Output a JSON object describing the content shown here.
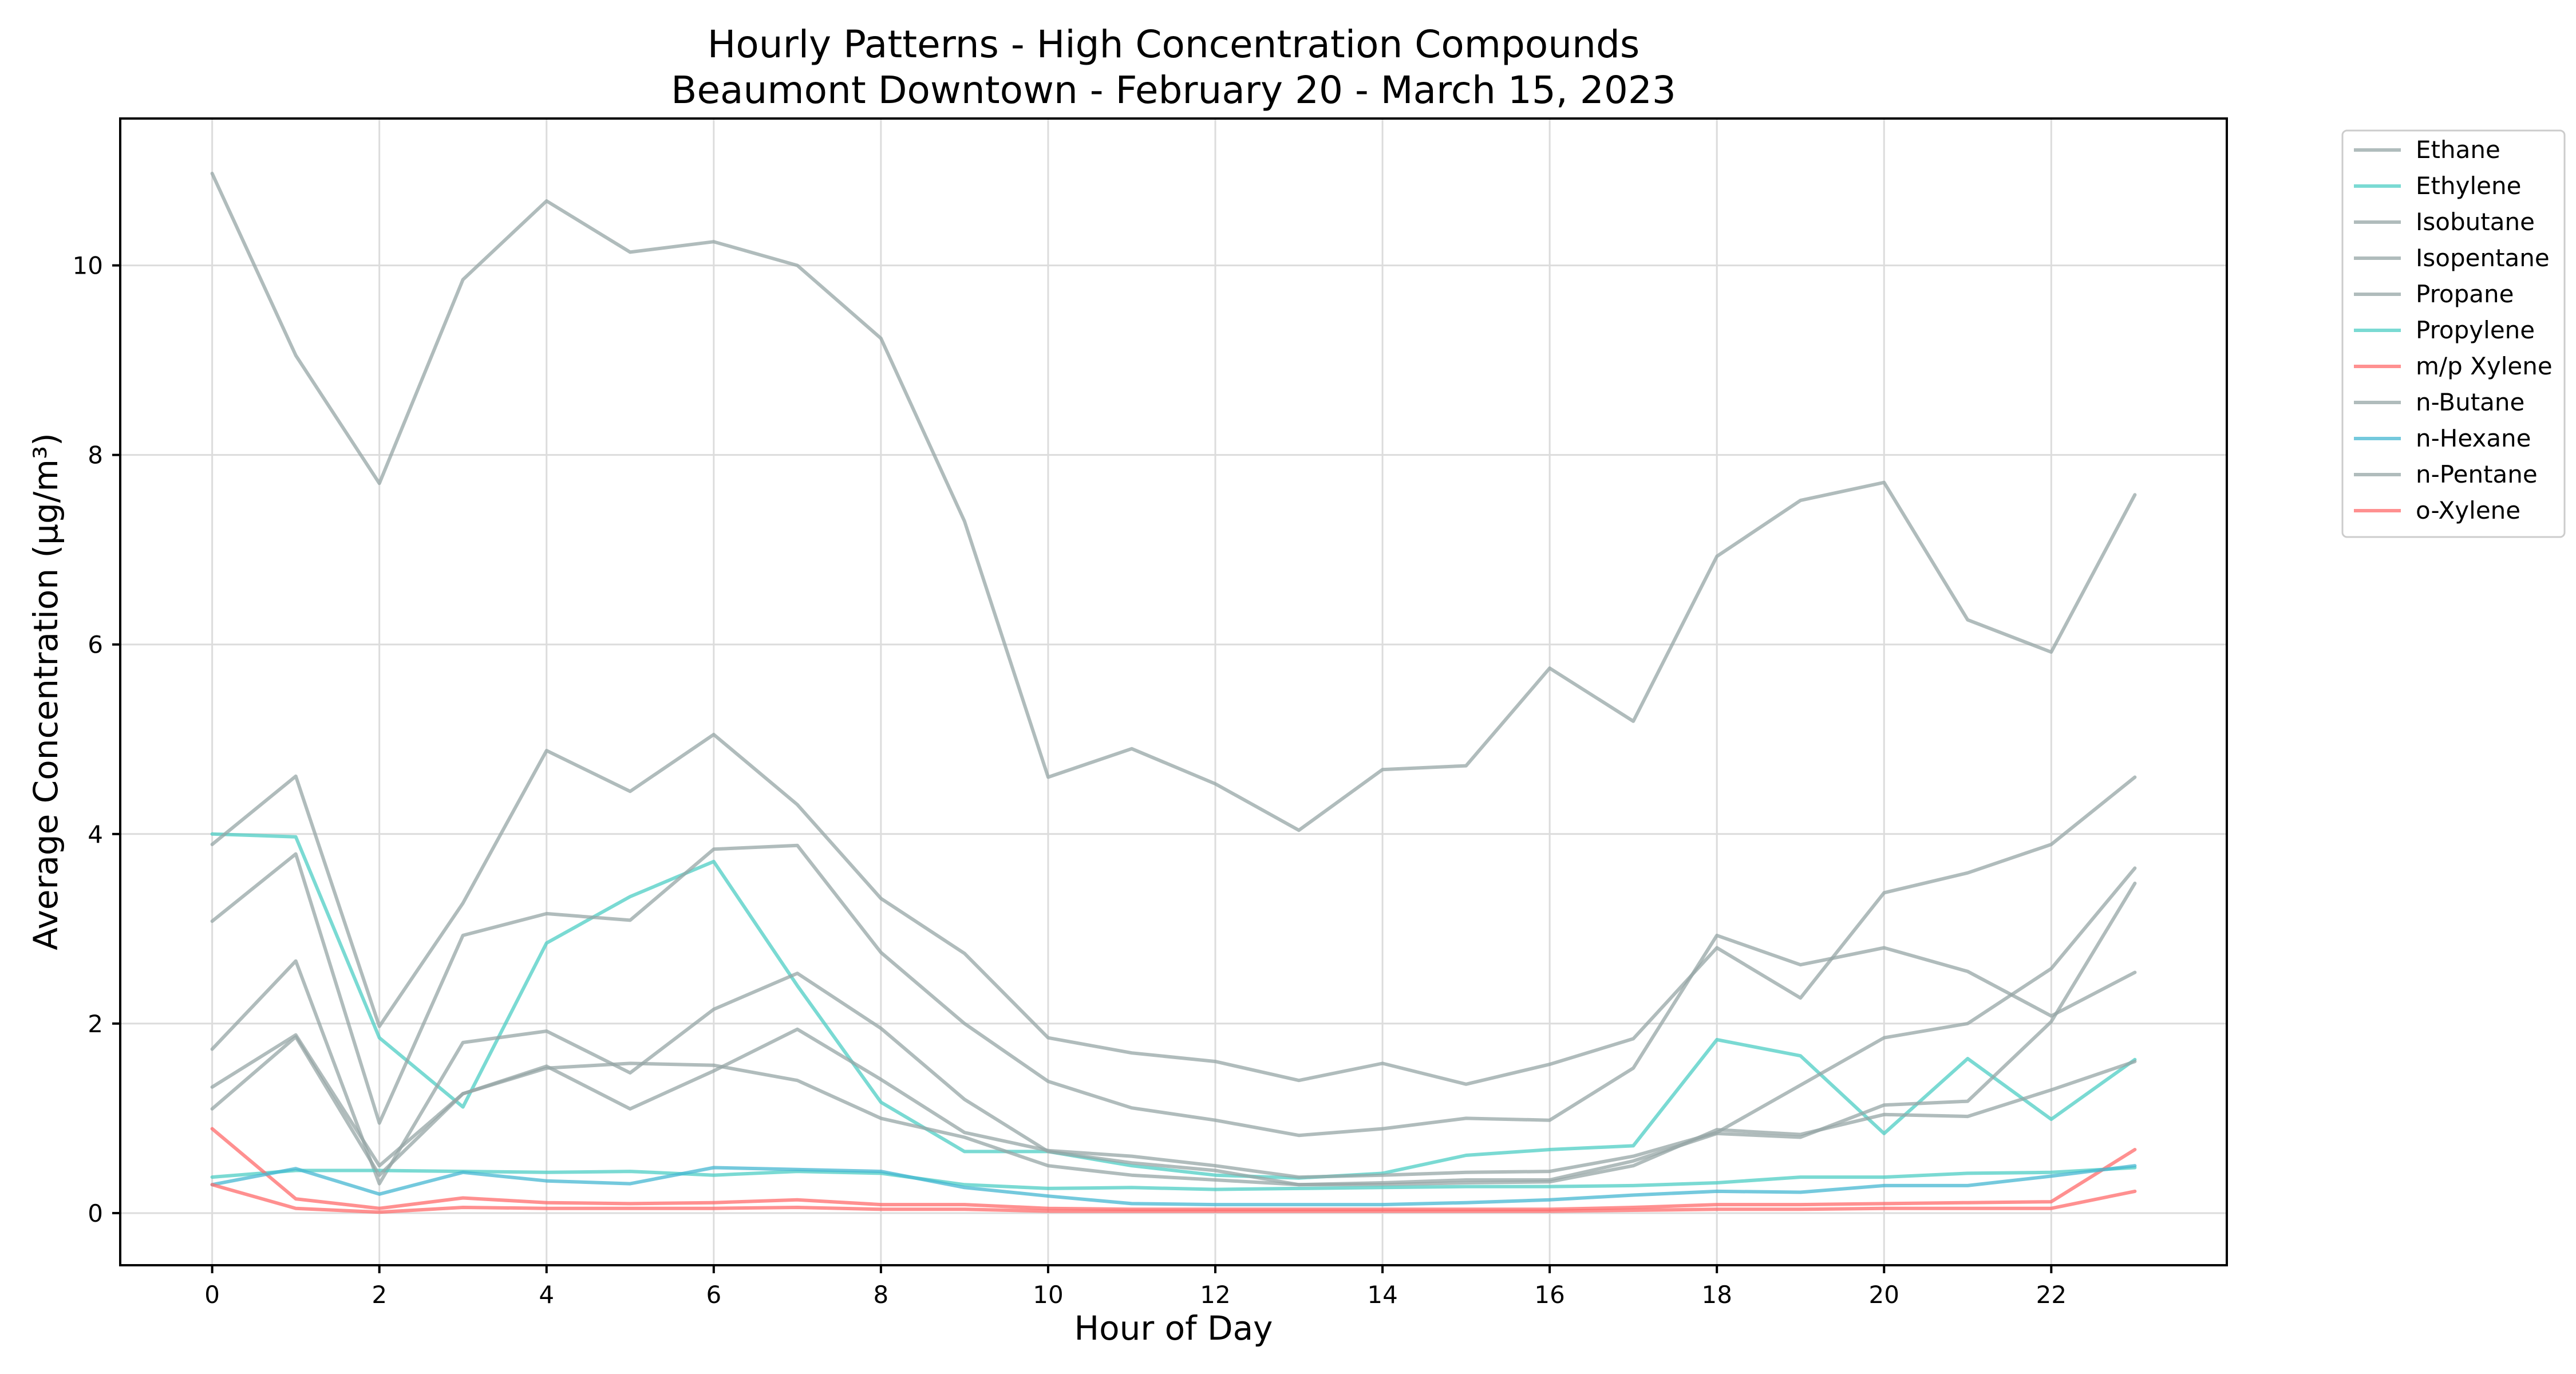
{
  "chart_data": {
    "type": "line",
    "title": "Hourly Patterns - High Concentration Compounds",
    "subtitle": "Beaumont Downtown - February 20 - March 15, 2023",
    "xlabel": "Hour of Day",
    "ylabel": "Average Concentration (μg/m³)",
    "xlim": [
      -1.1,
      24.1
    ],
    "ylim": [
      -0.55,
      11.55
    ],
    "xticks": [
      0,
      2,
      4,
      6,
      8,
      10,
      12,
      14,
      16,
      18,
      20,
      22
    ],
    "yticks": [
      0,
      2,
      4,
      6,
      8,
      10
    ],
    "grid": true,
    "legend_position": "outside-top-right",
    "x": [
      0,
      1,
      2,
      3,
      4,
      5,
      6,
      7,
      8,
      9,
      10,
      11,
      12,
      13,
      14,
      15,
      16,
      17,
      18,
      19,
      20,
      21,
      22,
      23
    ],
    "series": [
      {
        "name": "Ethane",
        "color": "#95a5a6",
        "values": [
          10.97,
          9.05,
          7.7,
          9.85,
          10.68,
          10.14,
          10.25,
          10.0,
          9.23,
          7.3,
          4.6,
          4.9,
          4.53,
          4.04,
          4.68,
          4.72,
          5.75,
          5.19,
          6.93,
          7.52,
          7.71,
          6.26,
          5.92,
          7.58
        ]
      },
      {
        "name": "Ethylene",
        "color": "#4ecdc4",
        "values": [
          4.0,
          3.97,
          1.85,
          1.12,
          2.85,
          3.34,
          3.71,
          2.4,
          1.17,
          0.65,
          0.65,
          0.5,
          0.4,
          0.37,
          0.42,
          0.61,
          0.67,
          0.71,
          1.83,
          1.66,
          0.84,
          1.63,
          0.99,
          1.62
        ]
      },
      {
        "name": "Isobutane",
        "color": "#95a5a6",
        "values": [
          1.73,
          2.66,
          0.31,
          1.8,
          1.92,
          1.48,
          2.15,
          2.53,
          1.95,
          1.2,
          0.65,
          0.53,
          0.45,
          0.3,
          0.32,
          0.35,
          0.35,
          0.55,
          0.84,
          0.8,
          1.14,
          1.18,
          2.02,
          3.48
        ]
      },
      {
        "name": "Isopentane",
        "color": "#95a5a6",
        "values": [
          1.33,
          1.88,
          0.5,
          1.26,
          1.53,
          1.58,
          1.56,
          1.4,
          1.0,
          0.8,
          0.5,
          0.4,
          0.35,
          0.3,
          0.3,
          0.32,
          0.33,
          0.5,
          0.88,
          0.83,
          1.04,
          1.02,
          1.3,
          1.6
        ]
      },
      {
        "name": "Propane",
        "color": "#95a5a6",
        "values": [
          3.89,
          4.61,
          1.97,
          3.27,
          4.88,
          4.45,
          5.05,
          4.31,
          3.32,
          2.74,
          1.85,
          1.69,
          1.6,
          1.4,
          1.58,
          1.36,
          1.57,
          1.84,
          2.8,
          2.27,
          3.38,
          3.59,
          3.89,
          4.6
        ]
      },
      {
        "name": "Propylene",
        "color": "#4ecdc4",
        "values": [
          0.38,
          0.45,
          0.45,
          0.44,
          0.43,
          0.44,
          0.4,
          0.44,
          0.42,
          0.3,
          0.26,
          0.27,
          0.25,
          0.26,
          0.27,
          0.28,
          0.28,
          0.29,
          0.32,
          0.38,
          0.38,
          0.42,
          0.43,
          0.48
        ]
      },
      {
        "name": "m/p Xylene",
        "color": "#ff6b6b",
        "values": [
          0.89,
          0.15,
          0.05,
          0.16,
          0.11,
          0.1,
          0.11,
          0.14,
          0.09,
          0.09,
          0.05,
          0.04,
          0.04,
          0.04,
          0.04,
          0.04,
          0.04,
          0.06,
          0.09,
          0.09,
          0.1,
          0.11,
          0.12,
          0.67
        ]
      },
      {
        "name": "n-Butane",
        "color": "#95a5a6",
        "values": [
          3.08,
          3.79,
          0.95,
          2.93,
          3.16,
          3.09,
          3.84,
          3.88,
          2.75,
          2.0,
          1.39,
          1.11,
          0.98,
          0.82,
          0.89,
          1.0,
          0.98,
          1.53,
          2.93,
          2.62,
          2.8,
          2.55,
          2.08,
          2.54
        ]
      },
      {
        "name": "n-Hexane",
        "color": "#45b7d1",
        "values": [
          0.3,
          0.47,
          0.2,
          0.43,
          0.34,
          0.31,
          0.48,
          0.46,
          0.44,
          0.27,
          0.18,
          0.1,
          0.09,
          0.09,
          0.09,
          0.11,
          0.14,
          0.19,
          0.23,
          0.22,
          0.29,
          0.29,
          0.39,
          0.5
        ]
      },
      {
        "name": "n-Pentane",
        "color": "#95a5a6",
        "values": [
          1.1,
          1.86,
          0.4,
          1.26,
          1.55,
          1.1,
          1.5,
          1.94,
          1.41,
          0.85,
          0.66,
          0.6,
          0.5,
          0.38,
          0.4,
          0.43,
          0.44,
          0.6,
          0.85,
          1.35,
          1.85,
          2.0,
          2.58,
          3.64
        ]
      },
      {
        "name": "o-Xylene",
        "color": "#ff6b6b",
        "values": [
          0.3,
          0.05,
          0.01,
          0.06,
          0.05,
          0.05,
          0.05,
          0.06,
          0.04,
          0.04,
          0.02,
          0.02,
          0.02,
          0.02,
          0.02,
          0.02,
          0.02,
          0.03,
          0.04,
          0.04,
          0.05,
          0.05,
          0.05,
          0.23
        ]
      }
    ]
  }
}
